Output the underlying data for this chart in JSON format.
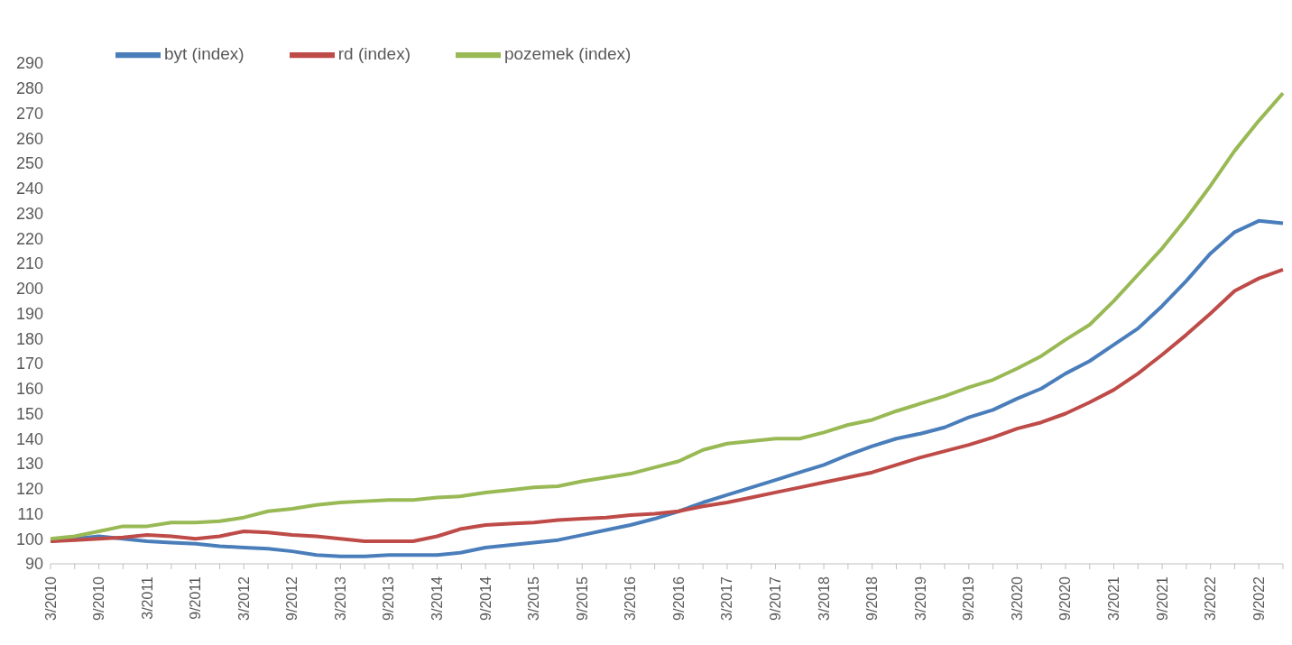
{
  "chart_data": {
    "type": "line",
    "categories": [
      "3/2010",
      null,
      "9/2010",
      null,
      "3/2011",
      null,
      "9/2011",
      null,
      "3/2012",
      null,
      "9/2012",
      null,
      "3/2013",
      null,
      "9/2013",
      null,
      "3/2014",
      null,
      "9/2014",
      null,
      "3/2015",
      null,
      "9/2015",
      null,
      "3/2016",
      null,
      "9/2016",
      null,
      "3/2017",
      null,
      "9/2017",
      null,
      "3/2018",
      null,
      "9/2018",
      null,
      "3/2019",
      null,
      "9/2019",
      null,
      "3/2020",
      null,
      "9/2020",
      null,
      "3/2021",
      null,
      "9/2021",
      null,
      "3/2022",
      null,
      "9/2022",
      null
    ],
    "series": [
      {
        "name": "byt (index)",
        "color": "#4a7ebb",
        "values": [
          99,
          100,
          101,
          100,
          99,
          98.5,
          98,
          97,
          96.5,
          96,
          95,
          93.5,
          93,
          93,
          93.5,
          93.5,
          93.5,
          94.5,
          96.5,
          97.5,
          98.5,
          99.5,
          101.5,
          103.5,
          105.5,
          108,
          111,
          114.5,
          117.5,
          120.5,
          123.5,
          126.5,
          129.5,
          133.5,
          137,
          140,
          142,
          144.5,
          148.5,
          151.5,
          156,
          160,
          166,
          171,
          177.5,
          184,
          193,
          203,
          214,
          222.5,
          227,
          226
        ]
      },
      {
        "name": "rd (index)",
        "color": "#be4b48",
        "values": [
          99,
          99.5,
          100,
          100.5,
          101.5,
          101,
          100,
          101,
          103,
          102.5,
          101.5,
          101,
          100,
          99,
          99,
          99,
          101,
          104,
          105.5,
          106,
          106.5,
          107.5,
          108,
          108.5,
          109.5,
          110,
          111,
          113,
          114.5,
          116.5,
          118.5,
          120.5,
          122.5,
          124.5,
          126.5,
          129.5,
          132.5,
          135,
          137.5,
          140.5,
          144,
          146.5,
          150,
          154.5,
          159.5,
          166,
          173.5,
          181.5,
          190,
          199,
          204,
          207.5
        ]
      },
      {
        "name": "pozemek (index)",
        "color": "#98b954",
        "values": [
          100,
          101,
          103,
          105,
          105,
          106.5,
          106.5,
          107,
          108.5,
          111,
          112,
          113.5,
          114.5,
          115,
          115.5,
          115.5,
          116.5,
          117,
          118.5,
          119.5,
          120.5,
          121,
          123,
          124.5,
          126,
          128.5,
          131,
          135.5,
          138,
          139,
          140,
          140,
          142.5,
          145.5,
          147.5,
          151,
          154,
          157,
          160.5,
          163.5,
          168,
          173,
          179.5,
          185.5,
          195,
          205.5,
          216,
          228,
          241,
          255,
          267,
          278
        ]
      }
    ],
    "ylim": [
      90,
      290
    ],
    "yticks": [
      90,
      100,
      110,
      120,
      130,
      140,
      150,
      160,
      170,
      180,
      190,
      200,
      210,
      220,
      230,
      240,
      250,
      260,
      270,
      280,
      290
    ],
    "grid": false,
    "legend": "top left",
    "marker": "none",
    "line_style": "solid"
  }
}
